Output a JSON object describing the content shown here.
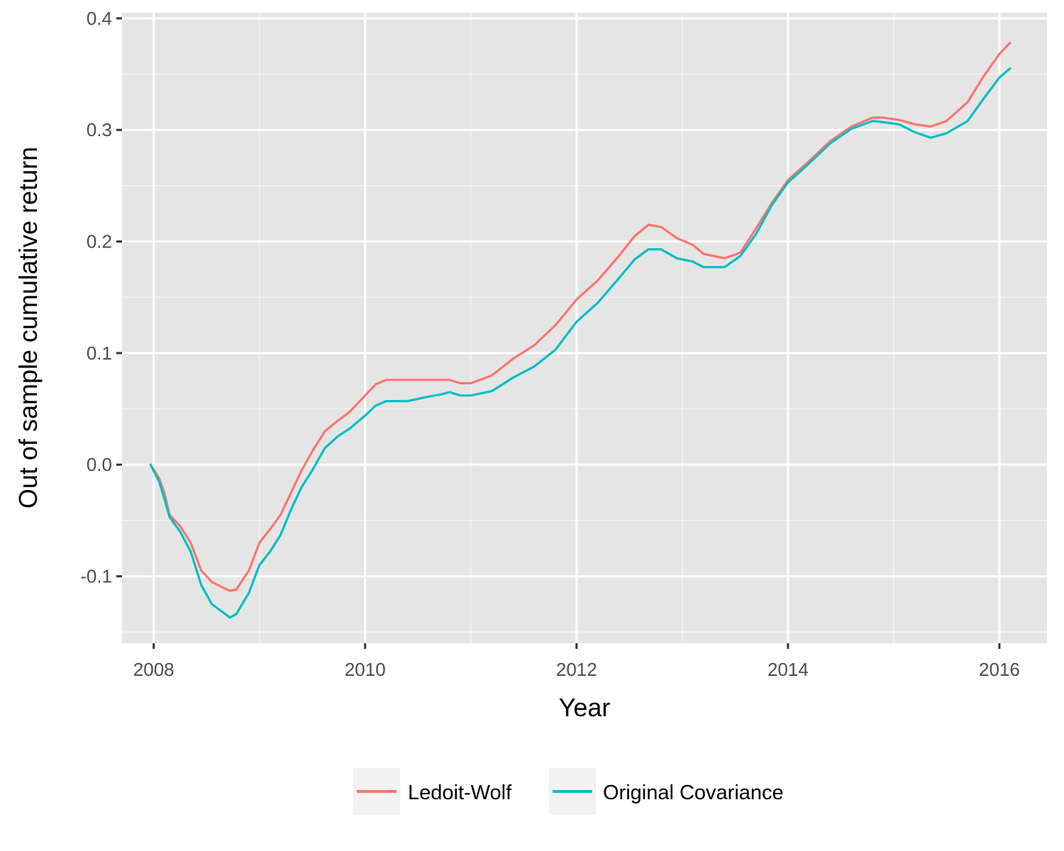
{
  "chart_data": {
    "type": "line",
    "title": "",
    "xlabel": "Year",
    "ylabel": "Out of sample cumulative return",
    "xlim": [
      2007.7,
      2016.45
    ],
    "ylim": [
      -0.16,
      0.405
    ],
    "x_ticks": [
      2008,
      2010,
      2012,
      2014,
      2016
    ],
    "x_tick_labels": [
      "2008",
      "2010",
      "2012",
      "2014",
      "2016"
    ],
    "y_ticks": [
      -0.1,
      0.0,
      0.1,
      0.2,
      0.3,
      0.4
    ],
    "y_tick_labels": [
      "-0.1",
      "0.0",
      "0.1",
      "0.2",
      "0.3",
      "0.4"
    ],
    "grid": true,
    "legend_position": "bottom",
    "series": [
      {
        "name": "Ledoit-Wolf",
        "color": "#F8766D",
        "points": [
          [
            2007.97,
            0.0
          ],
          [
            2008.05,
            -0.012
          ],
          [
            2008.1,
            -0.025
          ],
          [
            2008.15,
            -0.045
          ],
          [
            2008.25,
            -0.055
          ],
          [
            2008.35,
            -0.07
          ],
          [
            2008.45,
            -0.095
          ],
          [
            2008.55,
            -0.105
          ],
          [
            2008.65,
            -0.11
          ],
          [
            2008.72,
            -0.113
          ],
          [
            2008.78,
            -0.112
          ],
          [
            2008.9,
            -0.095
          ],
          [
            2009.0,
            -0.07
          ],
          [
            2009.1,
            -0.058
          ],
          [
            2009.2,
            -0.045
          ],
          [
            2009.3,
            -0.025
          ],
          [
            2009.4,
            -0.005
          ],
          [
            2009.5,
            0.012
          ],
          [
            2009.62,
            0.03
          ],
          [
            2009.75,
            0.04
          ],
          [
            2009.85,
            0.047
          ],
          [
            2010.0,
            0.062
          ],
          [
            2010.1,
            0.072
          ],
          [
            2010.2,
            0.076
          ],
          [
            2010.35,
            0.076
          ],
          [
            2010.5,
            0.076
          ],
          [
            2010.7,
            0.076
          ],
          [
            2010.8,
            0.076
          ],
          [
            2010.9,
            0.073
          ],
          [
            2011.0,
            0.073
          ],
          [
            2011.2,
            0.08
          ],
          [
            2011.4,
            0.095
          ],
          [
            2011.6,
            0.107
          ],
          [
            2011.8,
            0.125
          ],
          [
            2012.0,
            0.148
          ],
          [
            2012.2,
            0.165
          ],
          [
            2012.4,
            0.187
          ],
          [
            2012.55,
            0.205
          ],
          [
            2012.68,
            0.215
          ],
          [
            2012.8,
            0.213
          ],
          [
            2012.95,
            0.203
          ],
          [
            2013.1,
            0.197
          ],
          [
            2013.2,
            0.189
          ],
          [
            2013.4,
            0.185
          ],
          [
            2013.55,
            0.19
          ],
          [
            2013.7,
            0.212
          ],
          [
            2013.85,
            0.235
          ],
          [
            2014.0,
            0.255
          ],
          [
            2014.2,
            0.272
          ],
          [
            2014.4,
            0.29
          ],
          [
            2014.6,
            0.303
          ],
          [
            2014.8,
            0.311
          ],
          [
            2014.9,
            0.311
          ],
          [
            2015.05,
            0.309
          ],
          [
            2015.2,
            0.305
          ],
          [
            2015.35,
            0.303
          ],
          [
            2015.5,
            0.308
          ],
          [
            2015.7,
            0.325
          ],
          [
            2015.85,
            0.348
          ],
          [
            2016.0,
            0.368
          ],
          [
            2016.1,
            0.378
          ]
        ]
      },
      {
        "name": "Original Covariance",
        "color": "#00BFC4",
        "points": [
          [
            2007.97,
            0.0
          ],
          [
            2008.05,
            -0.015
          ],
          [
            2008.1,
            -0.03
          ],
          [
            2008.15,
            -0.047
          ],
          [
            2008.25,
            -0.06
          ],
          [
            2008.35,
            -0.078
          ],
          [
            2008.45,
            -0.108
          ],
          [
            2008.55,
            -0.125
          ],
          [
            2008.65,
            -0.132
          ],
          [
            2008.72,
            -0.137
          ],
          [
            2008.78,
            -0.134
          ],
          [
            2008.9,
            -0.115
          ],
          [
            2009.0,
            -0.09
          ],
          [
            2009.1,
            -0.078
          ],
          [
            2009.2,
            -0.063
          ],
          [
            2009.3,
            -0.04
          ],
          [
            2009.4,
            -0.02
          ],
          [
            2009.5,
            -0.005
          ],
          [
            2009.62,
            0.015
          ],
          [
            2009.75,
            0.026
          ],
          [
            2009.85,
            0.032
          ],
          [
            2010.0,
            0.044
          ],
          [
            2010.1,
            0.053
          ],
          [
            2010.2,
            0.057
          ],
          [
            2010.3,
            0.057
          ],
          [
            2010.4,
            0.057
          ],
          [
            2010.5,
            0.059
          ],
          [
            2010.6,
            0.061
          ],
          [
            2010.72,
            0.063
          ],
          [
            2010.8,
            0.065
          ],
          [
            2010.9,
            0.062
          ],
          [
            2011.0,
            0.062
          ],
          [
            2011.2,
            0.066
          ],
          [
            2011.4,
            0.078
          ],
          [
            2011.6,
            0.088
          ],
          [
            2011.8,
            0.103
          ],
          [
            2012.0,
            0.128
          ],
          [
            2012.2,
            0.145
          ],
          [
            2012.4,
            0.167
          ],
          [
            2012.55,
            0.184
          ],
          [
            2012.68,
            0.193
          ],
          [
            2012.8,
            0.193
          ],
          [
            2012.95,
            0.185
          ],
          [
            2013.1,
            0.182
          ],
          [
            2013.2,
            0.177
          ],
          [
            2013.4,
            0.177
          ],
          [
            2013.55,
            0.187
          ],
          [
            2013.7,
            0.207
          ],
          [
            2013.85,
            0.233
          ],
          [
            2014.0,
            0.253
          ],
          [
            2014.2,
            0.27
          ],
          [
            2014.4,
            0.288
          ],
          [
            2014.6,
            0.301
          ],
          [
            2014.8,
            0.308
          ],
          [
            2014.9,
            0.307
          ],
          [
            2015.05,
            0.305
          ],
          [
            2015.2,
            0.298
          ],
          [
            2015.35,
            0.293
          ],
          [
            2015.5,
            0.297
          ],
          [
            2015.7,
            0.308
          ],
          [
            2015.85,
            0.328
          ],
          [
            2016.0,
            0.347
          ],
          [
            2016.1,
            0.355
          ]
        ]
      }
    ]
  },
  "colors": {
    "panel_background": "#E5E5E5",
    "grid_major": "#FFFFFF",
    "grid_minor": "#F2F2F2",
    "legend_key_background": "#F2F2F2"
  }
}
